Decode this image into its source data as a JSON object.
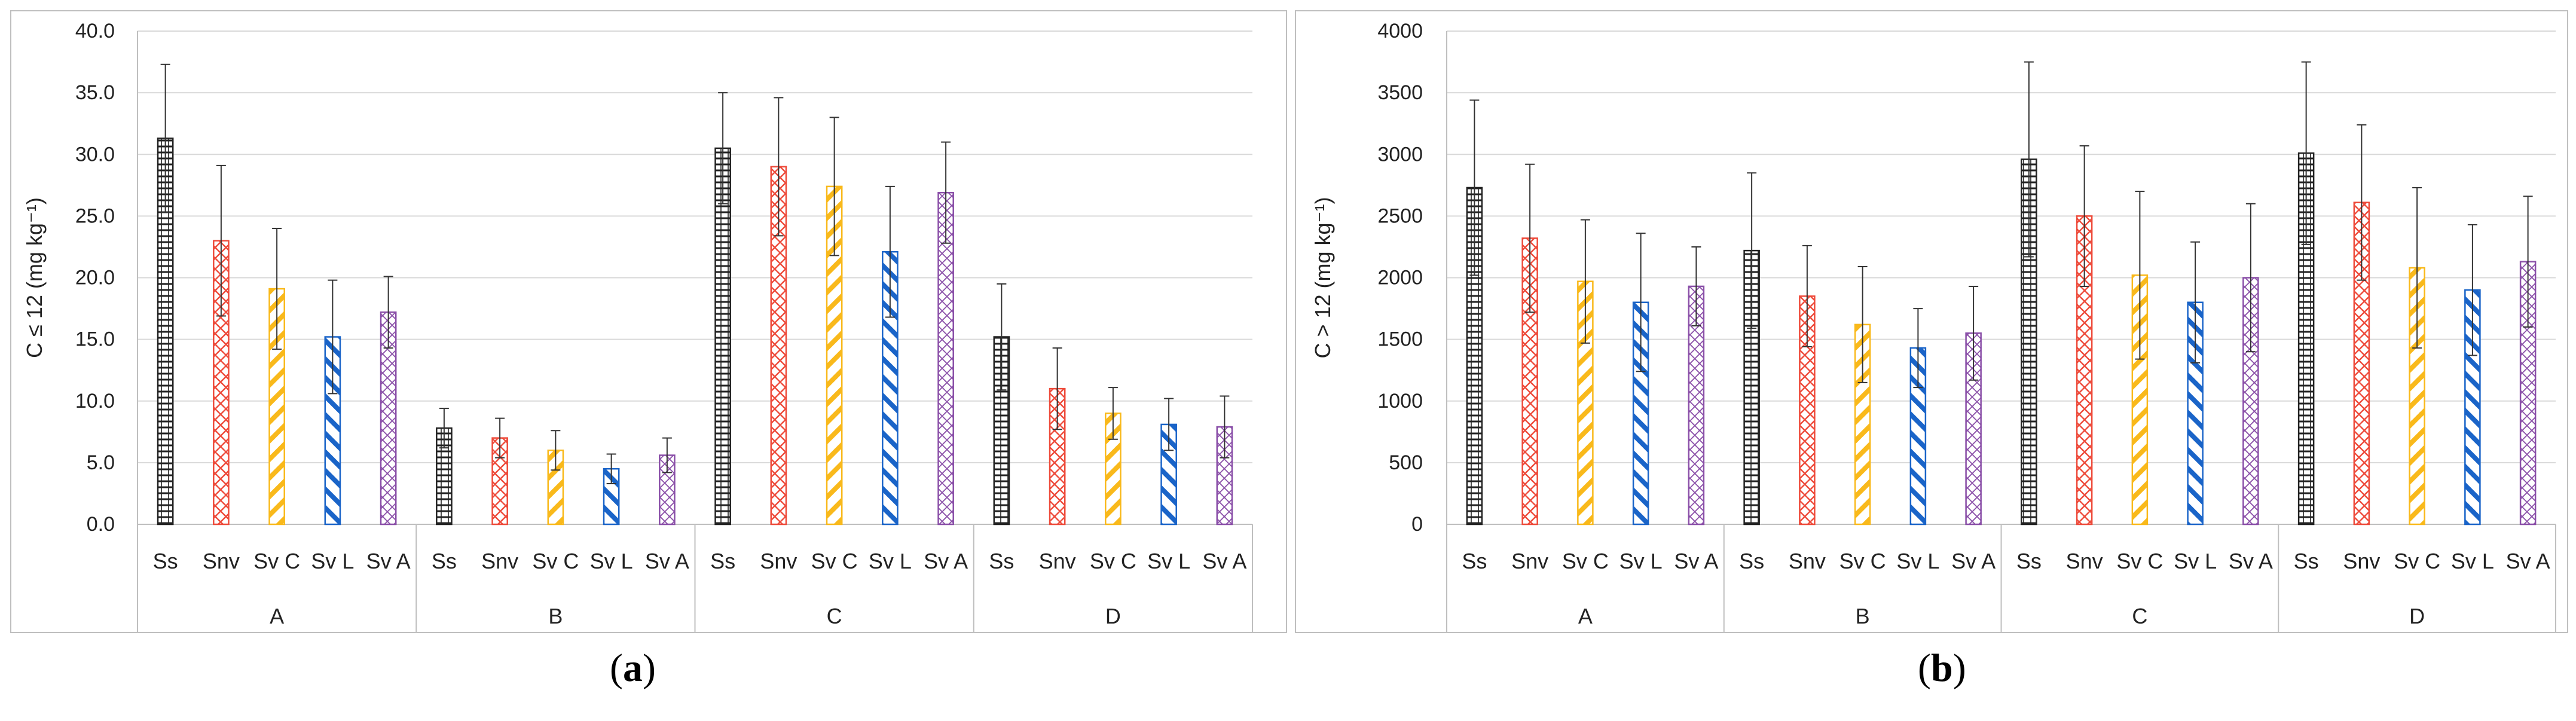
{
  "panel_labels": {
    "a": "a",
    "b": "b"
  },
  "colors": {
    "Ss": "#222222",
    "Snv": "#ee4b3b",
    "Sv C": "#f9b91b",
    "Sv L": "#1a64c8",
    "Sv A": "#8a4fa8",
    "axis": "#bfbfbf",
    "grid": "#d9d9d9",
    "error": "#333333"
  },
  "chart_data": [
    {
      "id": "a",
      "type": "bar",
      "ylabel": "C ≤ 12 (mg kg⁻¹)",
      "ylim": [
        0,
        40
      ],
      "yticks": [
        "0.0",
        "5.0",
        "10.0",
        "15.0",
        "20.0",
        "25.0",
        "30.0",
        "35.0",
        "40.0"
      ],
      "groups": [
        "A",
        "B",
        "C",
        "D"
      ],
      "categories": [
        "Ss",
        "Snv",
        "Sv C",
        "Sv L",
        "Sv A"
      ],
      "series": [
        {
          "group": "A",
          "values": [
            31.3,
            23.0,
            19.1,
            15.2,
            17.2
          ],
          "errors": [
            6.0,
            6.1,
            4.9,
            4.6,
            2.9
          ]
        },
        {
          "group": "B",
          "values": [
            7.8,
            7.0,
            6.0,
            4.5,
            5.6
          ],
          "errors": [
            1.6,
            1.6,
            1.6,
            1.2,
            1.4
          ]
        },
        {
          "group": "C",
          "values": [
            30.5,
            29.0,
            27.4,
            22.1,
            26.9
          ],
          "errors": [
            4.5,
            5.6,
            5.6,
            5.3,
            4.1
          ]
        },
        {
          "group": "D",
          "values": [
            15.2,
            11.0,
            9.0,
            8.1,
            7.9
          ],
          "errors": [
            4.3,
            3.3,
            2.1,
            2.1,
            2.5
          ]
        }
      ]
    },
    {
      "id": "b",
      "type": "bar",
      "ylabel": "C > 12 (mg kg⁻¹)",
      "ylim": [
        0,
        4000
      ],
      "yticks": [
        "0",
        "500",
        "1000",
        "1500",
        "2000",
        "2500",
        "3000",
        "3500",
        "4000"
      ],
      "groups": [
        "A",
        "B",
        "C",
        "D"
      ],
      "categories": [
        "Ss",
        "Snv",
        "Sv C",
        "Sv L",
        "Sv A"
      ],
      "series": [
        {
          "group": "A",
          "values": [
            2730,
            2320,
            1970,
            1800,
            1930
          ],
          "errors": [
            710,
            600,
            500,
            560,
            320
          ]
        },
        {
          "group": "B",
          "values": [
            2220,
            1850,
            1620,
            1430,
            1550
          ],
          "errors": [
            630,
            410,
            470,
            320,
            380
          ]
        },
        {
          "group": "C",
          "values": [
            2960,
            2500,
            2020,
            1800,
            2000
          ],
          "errors": [
            790,
            570,
            680,
            490,
            600
          ]
        },
        {
          "group": "D",
          "values": [
            3010,
            2610,
            2080,
            1900,
            2130
          ],
          "errors": [
            740,
            630,
            650,
            530,
            530
          ]
        }
      ]
    }
  ]
}
